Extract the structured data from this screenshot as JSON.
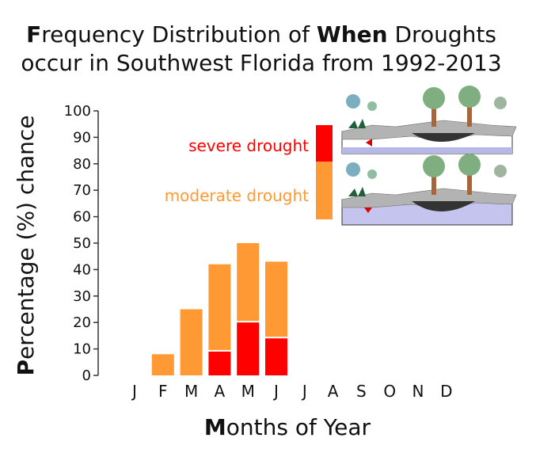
{
  "chart_data": {
    "type": "bar",
    "title_line1_bold": "F",
    "title_line1_a": "requency Distribution of ",
    "title_line1_bold2": "When",
    "title_line1_b": " Droughts",
    "title_line2": "occur in Southwest Florida from 1992-2013",
    "xlabel_bold": "M",
    "xlabel_rest": "onths of Year",
    "ylabel_bold": "P",
    "ylabel_rest": "ercentage (%) chance",
    "ylim": [
      0,
      100
    ],
    "y_ticks": [
      "0",
      "10",
      "20",
      "30",
      "40",
      "50",
      "60",
      "70",
      "80",
      "90",
      "100"
    ],
    "categories": [
      "J",
      "F",
      "M",
      "A",
      "M",
      "J",
      "J",
      "A",
      "S",
      "O",
      "N",
      "D"
    ],
    "series": [
      {
        "name": "severe drought",
        "color": "#ff0000",
        "values": [
          0,
          0,
          0,
          9,
          20,
          14,
          0,
          0,
          0,
          0,
          0,
          0
        ]
      },
      {
        "name": "moderate drought",
        "color": "#ff9933",
        "values": [
          0,
          8,
          25,
          33,
          30,
          29,
          0,
          0,
          0,
          0,
          0,
          0
        ]
      }
    ],
    "legend": {
      "placement": "top-right",
      "severe_label": "severe drought",
      "moderate_label": "moderate drought",
      "severe_color": "#ff0000",
      "moderate_color": "#ff9933"
    }
  }
}
